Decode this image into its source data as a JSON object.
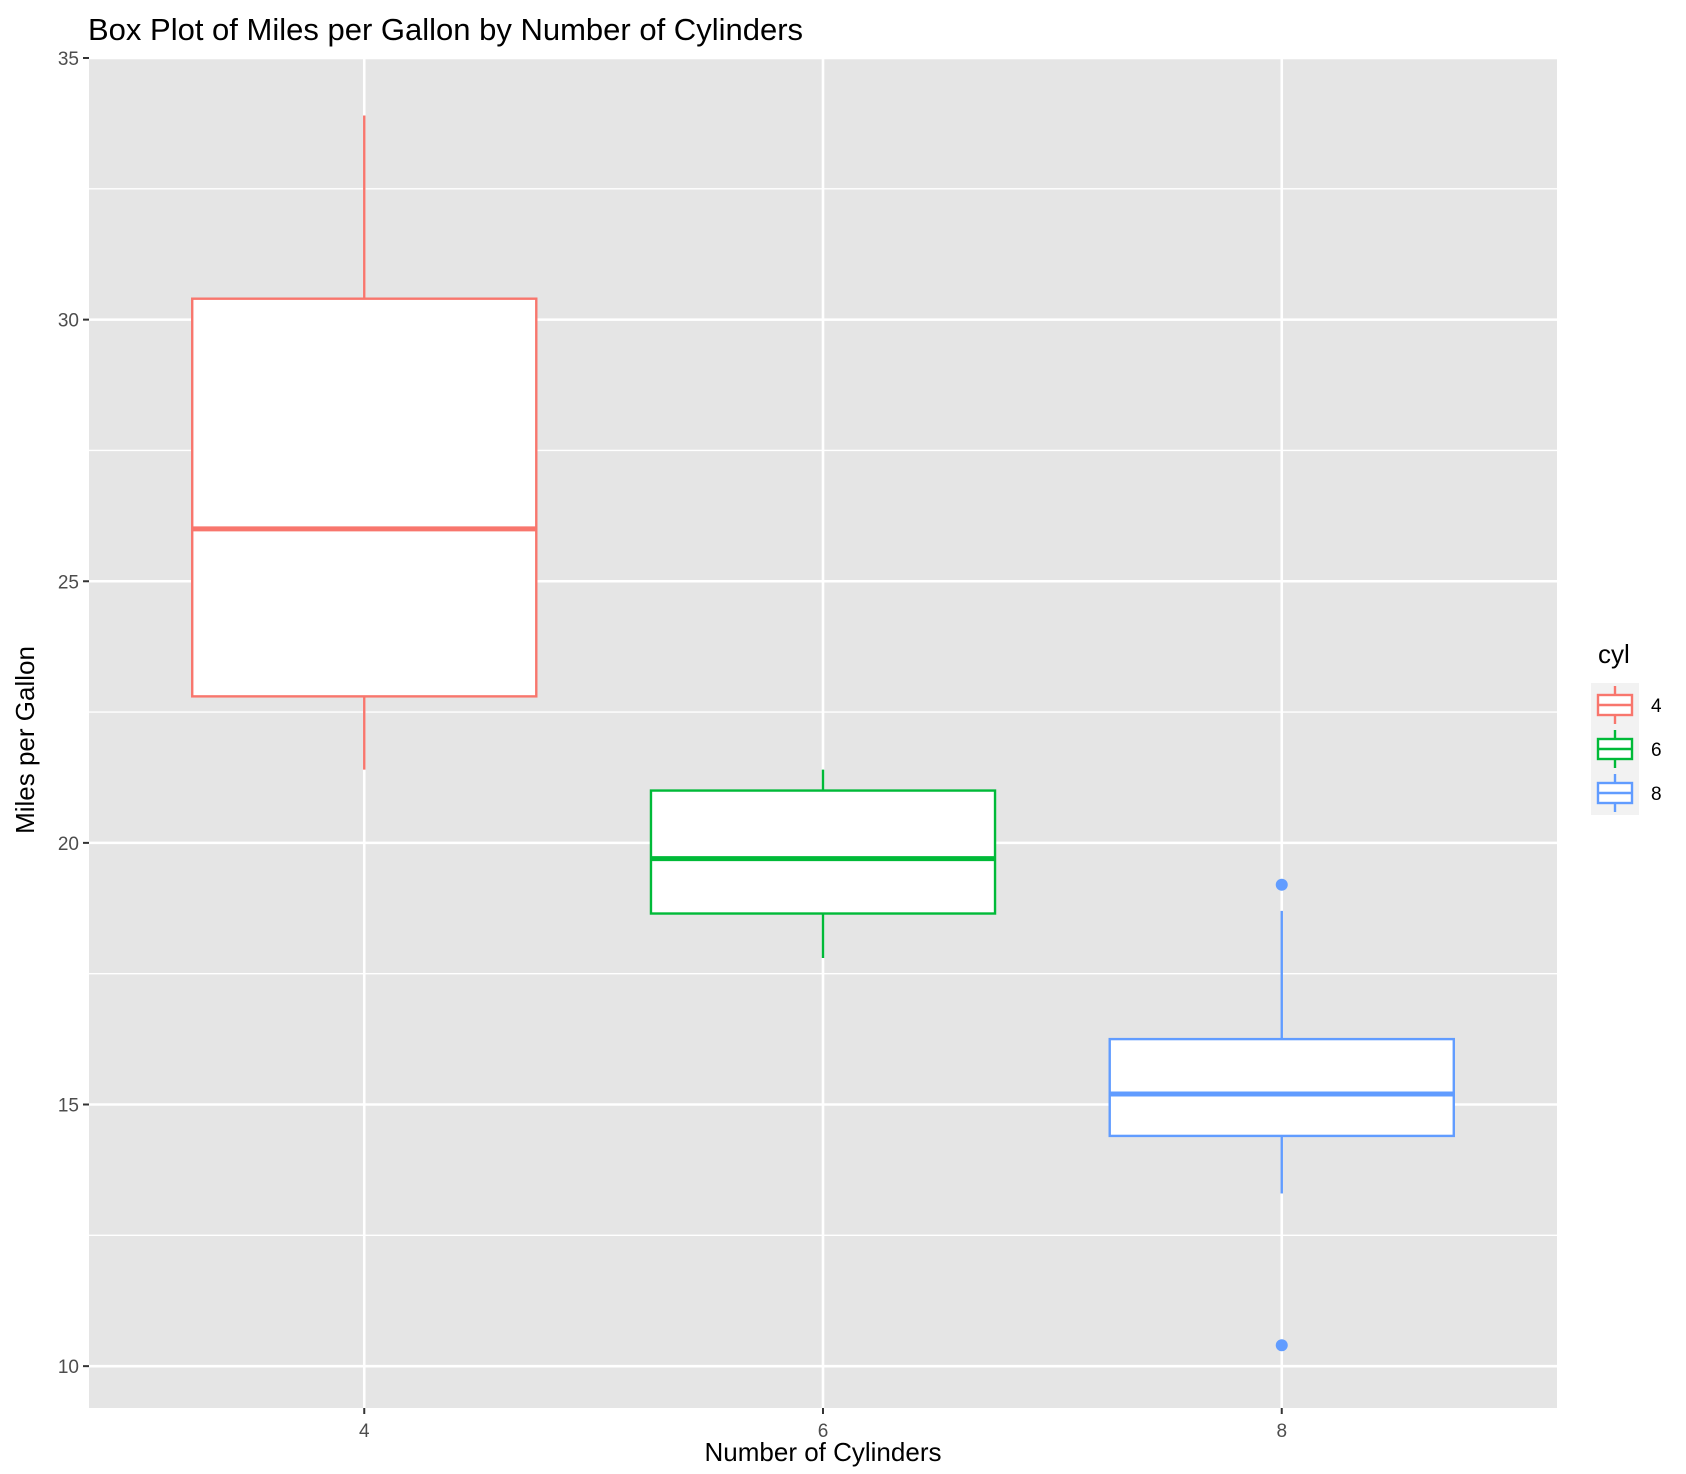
{
  "chart_data": {
    "type": "boxplot",
    "title": "Box Plot of Miles per Gallon by Number of Cylinders",
    "xlabel": "Number of Cylinders",
    "ylabel": "Miles per Gallon",
    "categories": [
      "4",
      "6",
      "8"
    ],
    "ylim": [
      9.2,
      35.0
    ],
    "yticks": [
      10,
      15,
      20,
      25,
      30,
      35
    ],
    "ytick_labels": [
      "10",
      "15",
      "20",
      "25",
      "30",
      "35"
    ],
    "grid": true,
    "legend": {
      "title": "cyl",
      "position": "right",
      "entries": [
        "4",
        "6",
        "8"
      ]
    },
    "series": [
      {
        "name": "4",
        "color": "#F8766D",
        "whisker_low": 21.4,
        "q1": 22.8,
        "median": 26.0,
        "q3": 30.4,
        "whisker_high": 33.9,
        "outliers": []
      },
      {
        "name": "6",
        "color": "#00BA38",
        "whisker_low": 17.8,
        "q1": 18.65,
        "median": 19.7,
        "q3": 21.0,
        "whisker_high": 21.4,
        "outliers": []
      },
      {
        "name": "8",
        "color": "#619CFF",
        "whisker_low": 13.3,
        "q1": 14.4,
        "median": 15.2,
        "q3": 16.25,
        "whisker_high": 18.7,
        "outliers": [
          19.2,
          10.4
        ]
      }
    ]
  }
}
